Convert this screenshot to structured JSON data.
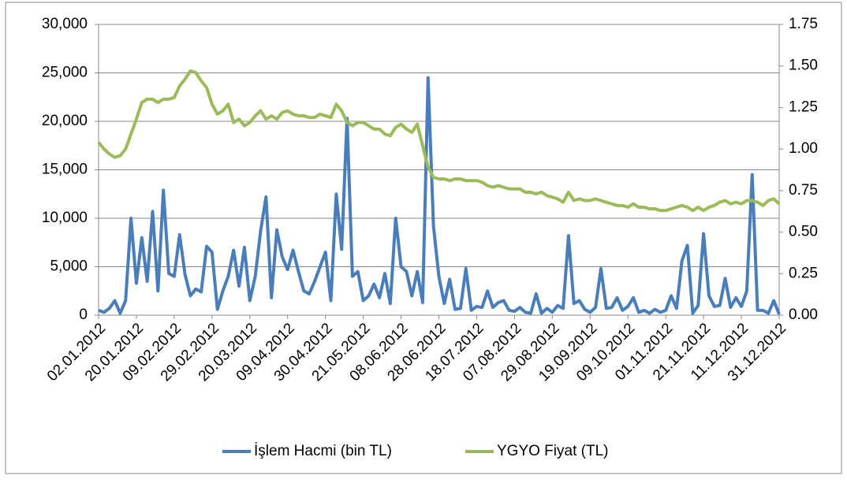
{
  "chart_data": {
    "type": "line",
    "categories": [
      "02.01.2012",
      null,
      null,
      null,
      null,
      null,
      null,
      "20.01.2012",
      null,
      null,
      null,
      null,
      null,
      null,
      "09.02.2012",
      null,
      null,
      null,
      null,
      null,
      null,
      "29.02.2012",
      null,
      null,
      null,
      null,
      null,
      null,
      "20.03.2012",
      null,
      null,
      null,
      null,
      null,
      null,
      "09.04.2012",
      null,
      null,
      null,
      null,
      null,
      null,
      "30.04.2012",
      null,
      null,
      null,
      null,
      null,
      null,
      "21.05.2012",
      null,
      null,
      null,
      null,
      null,
      null,
      "08.06.2012",
      null,
      null,
      null,
      null,
      null,
      null,
      "28.06.2012",
      null,
      null,
      null,
      null,
      null,
      null,
      "18.07.2012",
      null,
      null,
      null,
      null,
      null,
      null,
      "07.08.2012",
      null,
      null,
      null,
      null,
      null,
      null,
      "29.08.2012",
      null,
      null,
      null,
      null,
      null,
      null,
      "19.09.2012",
      null,
      null,
      null,
      null,
      null,
      null,
      "09.10.2012",
      null,
      null,
      null,
      null,
      null,
      null,
      "01.11.2012",
      null,
      null,
      null,
      null,
      null,
      null,
      "21.11.2012",
      null,
      null,
      null,
      null,
      null,
      null,
      "11.12.2012",
      null,
      null,
      null,
      null,
      null,
      null,
      "31.12.2012"
    ],
    "series": [
      {
        "name": "İşlem Hacmi (bin TL)",
        "color": "#4a7ebb",
        "values": [
          500,
          300,
          700,
          1500,
          200,
          1500,
          10000,
          3300,
          8000,
          3500,
          10700,
          2500,
          12900,
          4300,
          4000,
          8300,
          4200,
          2000,
          2700,
          2400,
          7100,
          6500,
          600,
          2500,
          4000,
          6700,
          3000,
          7000,
          1500,
          4000,
          8700,
          12200,
          1800,
          8800,
          6000,
          4700,
          6700,
          4500,
          2500,
          2200,
          3500,
          5000,
          6500,
          1500,
          12500,
          6800,
          20300,
          4000,
          4500,
          1500,
          2000,
          3200,
          1800,
          4300,
          1200,
          10000,
          5000,
          4500,
          2000,
          4500,
          1300,
          24500,
          9200,
          4000,
          1200,
          3700,
          600,
          700,
          4800,
          500,
          900,
          800,
          2500,
          800,
          1300,
          1500,
          500,
          400,
          800,
          300,
          200,
          2200,
          200,
          700,
          300,
          1000,
          700,
          8200,
          1200,
          1500,
          600,
          300,
          800,
          4800,
          700,
          800,
          1800,
          500,
          900,
          1800,
          300,
          500,
          200,
          600,
          300,
          500,
          2000,
          700,
          5600,
          7200,
          200,
          1000,
          8400,
          2000,
          900,
          1000,
          3800,
          800,
          1800,
          900,
          2500,
          14500,
          500,
          500,
          200,
          1500,
          100
        ]
      },
      {
        "name": "YGYO Fiyat (TL)",
        "color": "#9bbb59",
        "axis": "y2",
        "values": [
          1.04,
          1.0,
          0.97,
          0.95,
          0.96,
          1.0,
          1.09,
          1.18,
          1.28,
          1.3,
          1.3,
          1.28,
          1.3,
          1.3,
          1.31,
          1.38,
          1.42,
          1.47,
          1.46,
          1.41,
          1.37,
          1.27,
          1.21,
          1.23,
          1.27,
          1.16,
          1.18,
          1.14,
          1.16,
          1.2,
          1.23,
          1.18,
          1.2,
          1.18,
          1.22,
          1.23,
          1.21,
          1.2,
          1.2,
          1.19,
          1.19,
          1.21,
          1.2,
          1.19,
          1.27,
          1.23,
          1.16,
          1.14,
          1.16,
          1.16,
          1.14,
          1.12,
          1.12,
          1.09,
          1.08,
          1.13,
          1.15,
          1.12,
          1.1,
          1.15,
          1.02,
          0.89,
          0.83,
          0.82,
          0.82,
          0.81,
          0.82,
          0.82,
          0.81,
          0.81,
          0.81,
          0.8,
          0.78,
          0.77,
          0.78,
          0.77,
          0.76,
          0.76,
          0.76,
          0.74,
          0.74,
          0.73,
          0.74,
          0.72,
          0.71,
          0.7,
          0.68,
          0.74,
          0.69,
          0.7,
          0.69,
          0.69,
          0.7,
          0.69,
          0.68,
          0.67,
          0.66,
          0.66,
          0.65,
          0.67,
          0.65,
          0.65,
          0.64,
          0.64,
          0.63,
          0.63,
          0.64,
          0.65,
          0.66,
          0.65,
          0.63,
          0.65,
          0.63,
          0.65,
          0.66,
          0.68,
          0.69,
          0.67,
          0.68,
          0.67,
          0.69,
          0.69,
          0.68,
          0.66,
          0.69,
          0.7,
          0.67
        ]
      }
    ],
    "ylim": [
      0,
      30000
    ],
    "yticks": [
      0,
      {
        "value": 5000,
        "label": "5,000"
      },
      {
        "value": 10000,
        "label": "10,000"
      },
      {
        "value": 15000,
        "label": "15,000"
      },
      {
        "value": 20000,
        "label": "20,000"
      },
      {
        "value": 25000,
        "label": "25,000"
      },
      {
        "value": 30000,
        "label": "30,000"
      }
    ],
    "y2lim": [
      0,
      1.75
    ],
    "y2ticks": [
      {
        "value": 0,
        "label": "0.00"
      },
      0.25,
      {
        "value": 0.5,
        "label": "0.50"
      },
      0.75,
      {
        "value": 1,
        "label": "1.00"
      },
      1.25,
      {
        "value": 1.5,
        "label": "1.50"
      },
      1.75
    ],
    "grid": true,
    "legend": "bottom"
  }
}
